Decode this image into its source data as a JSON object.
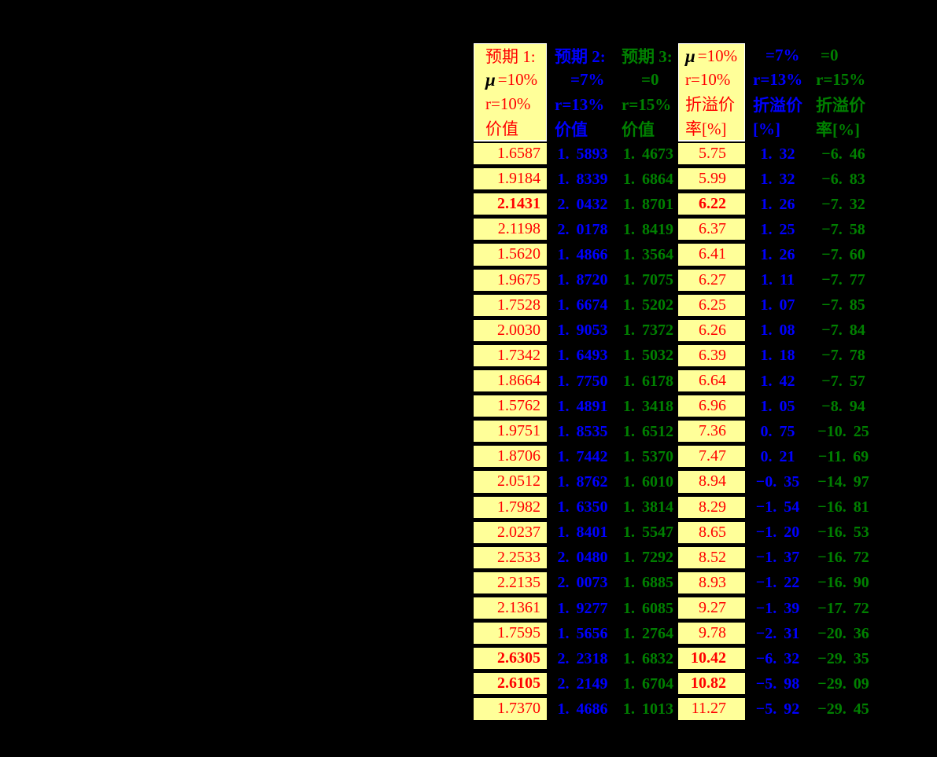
{
  "chart_data": {
    "type": "table",
    "title": "",
    "columns": [
      {
        "id": "expectation1-value",
        "scheme": "red",
        "header": [
          "预期 1:",
          "μ=10%",
          "r=10%",
          "价值"
        ]
      },
      {
        "id": "expectation2-value",
        "scheme": "blue",
        "header": [
          "预期 2:",
          "=7%",
          "r=13%",
          "价值"
        ]
      },
      {
        "id": "expectation3-value",
        "scheme": "green",
        "header": [
          "预期 3:",
          "=0",
          "r=15%",
          "价值"
        ]
      },
      {
        "id": "expectation1-premium",
        "scheme": "red",
        "header": [
          "μ=10%",
          "r=10%",
          "折溢价",
          "率[%]"
        ]
      },
      {
        "id": "expectation2-premium",
        "scheme": "blue",
        "header": [
          "=7%",
          "r=13%",
          "折溢价",
          "[%]"
        ]
      },
      {
        "id": "expectation3-premium",
        "scheme": "green",
        "header": [
          "=0",
          "r=15%",
          "折溢价",
          "率[%]"
        ]
      }
    ],
    "rows": [
      [
        "1.6587",
        "1.5893",
        "1.4673",
        "5.75",
        "1.32",
        "-6.46"
      ],
      [
        "1.9184",
        "1.8339",
        "1.6864",
        "5.99",
        "1.32",
        "-6.83"
      ],
      [
        "2.1431",
        "2.0432",
        "1.8701",
        "6.22",
        "1.26",
        "-7.32"
      ],
      [
        "2.1198",
        "2.0178",
        "1.8419",
        "6.37",
        "1.25",
        "-7.58"
      ],
      [
        "1.5620",
        "1.4866",
        "1.3564",
        "6.41",
        "1.26",
        "-7.60"
      ],
      [
        "1.9675",
        "1.8720",
        "1.7075",
        "6.27",
        "1.11",
        "-7.77"
      ],
      [
        "1.7528",
        "1.6674",
        "1.5202",
        "6.25",
        "1.07",
        "-7.85"
      ],
      [
        "2.0030",
        "1.9053",
        "1.7372",
        "6.26",
        "1.08",
        "-7.84"
      ],
      [
        "1.7342",
        "1.6493",
        "1.5032",
        "6.39",
        "1.18",
        "-7.78"
      ],
      [
        "1.8664",
        "1.7750",
        "1.6178",
        "6.64",
        "1.42",
        "-7.57"
      ],
      [
        "1.5762",
        "1.4891",
        "1.3418",
        "6.96",
        "1.05",
        "-8.94"
      ],
      [
        "1.9751",
        "1.8535",
        "1.6512",
        "7.36",
        "0.75",
        "-10.25"
      ],
      [
        "1.8706",
        "1.7442",
        "1.5370",
        "7.47",
        "0.21",
        "-11.69"
      ],
      [
        "2.0512",
        "1.8762",
        "1.6010",
        "8.94",
        "-0.35",
        "-14.97"
      ],
      [
        "1.7982",
        "1.6350",
        "1.3814",
        "8.29",
        "-1.54",
        "-16.81"
      ],
      [
        "2.0237",
        "1.8401",
        "1.5547",
        "8.65",
        "-1.20",
        "-16.53"
      ],
      [
        "2.2533",
        "2.0480",
        "1.7292",
        "8.52",
        "-1.37",
        "-16.72"
      ],
      [
        "2.2135",
        "2.0073",
        "1.6885",
        "8.93",
        "-1.22",
        "-16.90"
      ],
      [
        "2.1361",
        "1.9277",
        "1.6085",
        "9.27",
        "-1.39",
        "-17.72"
      ],
      [
        "1.7595",
        "1.5656",
        "1.2764",
        "9.78",
        "-2.31",
        "-20.36"
      ],
      [
        "2.6305",
        "2.2318",
        "1.6832",
        "10.42",
        "-6.32",
        "-29.35"
      ],
      [
        "2.6105",
        "2.2149",
        "1.6704",
        "10.82",
        "-5.98",
        "-29.09"
      ],
      [
        "1.7370",
        "1.4686",
        "1.1013",
        "11.27",
        "-5.92",
        "-29.45"
      ]
    ],
    "bold_row_indexes": [
      2,
      20,
      21
    ],
    "colors": {
      "red": "#ff0000",
      "blue": "#0000ff",
      "green": "#008000",
      "yellow_bg": "#ffff99",
      "mu_symbol": "#000000",
      "background": "#000000"
    },
    "layout_hints": {
      "grid": "off",
      "yellow_columns": [
        0,
        3
      ],
      "legend_position": "none"
    }
  }
}
